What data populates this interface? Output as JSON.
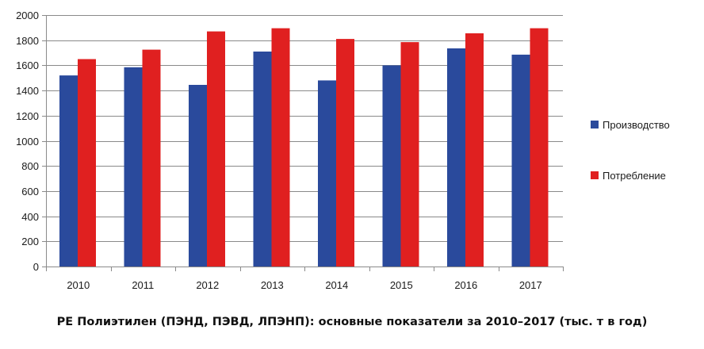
{
  "chart_data": {
    "type": "bar",
    "categories": [
      "2010",
      "2011",
      "2012",
      "2013",
      "2014",
      "2015",
      "2016",
      "2017"
    ],
    "series": [
      {
        "name": "Производство",
        "color": "#2a4a9c",
        "values": [
          1520,
          1585,
          1445,
          1710,
          1480,
          1600,
          1735,
          1685
        ]
      },
      {
        "name": "Потребление",
        "color": "#e02020",
        "values": [
          1650,
          1725,
          1870,
          1895,
          1810,
          1785,
          1855,
          1895
        ]
      }
    ],
    "ylim": [
      0,
      2000
    ],
    "yticks": [
      "0",
      "200",
      "400",
      "600",
      "800",
      "1000",
      "1200",
      "1400",
      "1600",
      "1800",
      "2000"
    ],
    "grid": true,
    "legend_position": "right"
  },
  "caption": "PE Полиэтилен (ПЭНД, ПЭВД, ЛПЭНП): основные показатели за 2010–2017 (тыс. т в год)"
}
